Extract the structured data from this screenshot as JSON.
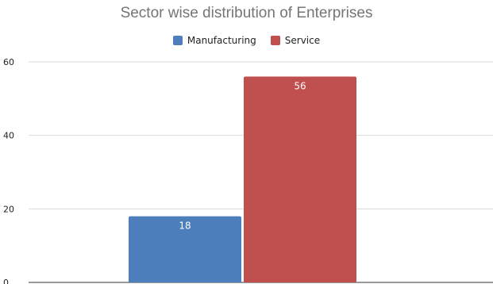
{
  "chart_data": {
    "type": "bar",
    "title": "Sector wise distribution of Enterprises",
    "xlabel": "",
    "ylabel": "",
    "categories": [
      ""
    ],
    "series": [
      {
        "name": "Manufacturing",
        "values": [
          18
        ],
        "color": "#4e7fbd"
      },
      {
        "name": "Service",
        "values": [
          56
        ],
        "color": "#c0504d"
      }
    ],
    "ylim": [
      0,
      60
    ],
    "yticks": [
      0,
      20,
      40,
      60
    ],
    "grid": true,
    "legend_position": "top"
  }
}
